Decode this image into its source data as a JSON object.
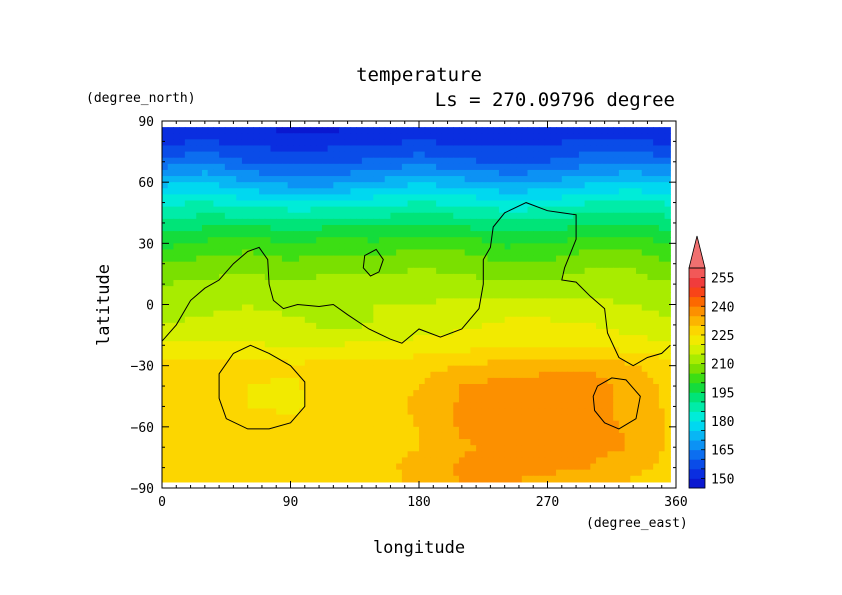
{
  "chart_data": {
    "type": "heatmap",
    "title": "temperature",
    "subtitle": "Ls = 270.09796 degree",
    "xlabel": "longitude",
    "ylabel": "latitude",
    "x_units": "(degree_east)",
    "y_units": "(degree_north)",
    "xlim": [
      0,
      360
    ],
    "ylim": [
      -90,
      90
    ],
    "x_ticks": [
      0,
      90,
      180,
      270,
      360
    ],
    "y_ticks": [
      90,
      60,
      30,
      0,
      -30,
      -60,
      -90
    ],
    "data_extent": {
      "lon": [
        0,
        356
      ],
      "lat": [
        -87,
        87
      ]
    },
    "colorbar": {
      "tick_labels": [
        255,
        240,
        225,
        210,
        195,
        180,
        165,
        150
      ],
      "levels": [
        {
          "min": 145,
          "max": 150,
          "color": "#0a18d0"
        },
        {
          "min": 150,
          "max": 155,
          "color": "#0a2ee0"
        },
        {
          "min": 155,
          "max": 160,
          "color": "#0a4ce8"
        },
        {
          "min": 160,
          "max": 165,
          "color": "#0c6ef0"
        },
        {
          "min": 165,
          "max": 170,
          "color": "#0c92f4"
        },
        {
          "min": 170,
          "max": 175,
          "color": "#08b6f4"
        },
        {
          "min": 175,
          "max": 180,
          "color": "#00d8f0"
        },
        {
          "min": 180,
          "max": 185,
          "color": "#00ecd8"
        },
        {
          "min": 185,
          "max": 190,
          "color": "#00eca8"
        },
        {
          "min": 190,
          "max": 195,
          "color": "#00e478"
        },
        {
          "min": 195,
          "max": 200,
          "color": "#14dc3c"
        },
        {
          "min": 200,
          "max": 205,
          "color": "#3cde14"
        },
        {
          "min": 205,
          "max": 210,
          "color": "#7ae000"
        },
        {
          "min": 210,
          "max": 215,
          "color": "#a8ec00"
        },
        {
          "min": 215,
          "max": 220,
          "color": "#d4f000"
        },
        {
          "min": 220,
          "max": 225,
          "color": "#f2ea00"
        },
        {
          "min": 225,
          "max": 230,
          "color": "#fcd600"
        },
        {
          "min": 230,
          "max": 235,
          "color": "#fcb400"
        },
        {
          "min": 235,
          "max": 240,
          "color": "#fc9000"
        },
        {
          "min": 240,
          "max": 245,
          "color": "#fc6800"
        },
        {
          "min": 245,
          "max": 250,
          "color": "#f84418"
        },
        {
          "min": 250,
          "max": 255,
          "color": "#f03c3c"
        },
        {
          "min": 255,
          "max": 260,
          "color": "#f25858"
        }
      ],
      "overflow_color": "#f07070"
    },
    "temperature_grid": {
      "lon": [
        0,
        30,
        60,
        90,
        120,
        150,
        180,
        210,
        240,
        270,
        300,
        330,
        360
      ],
      "lat": [
        87,
        80,
        70,
        60,
        50,
        40,
        30,
        20,
        10,
        0,
        -10,
        -20,
        -30,
        -40,
        -50,
        -60,
        -70,
        -80,
        -87
      ],
      "values": [
        [
          150,
          150,
          150,
          149,
          149,
          150,
          150,
          150,
          150,
          150,
          150,
          150,
          150
        ],
        [
          154,
          155,
          154,
          152,
          153,
          154,
          155,
          154,
          153,
          154,
          156,
          155,
          154
        ],
        [
          162,
          164,
          160,
          158,
          159,
          161,
          163,
          161,
          159,
          160,
          163,
          164,
          162
        ],
        [
          173,
          175,
          170,
          168,
          168,
          171,
          174,
          172,
          169,
          170,
          174,
          176,
          173
        ],
        [
          184,
          185,
          182,
          181,
          181,
          183,
          185,
          184,
          181,
          182,
          185,
          186,
          184
        ],
        [
          192,
          193,
          194,
          192,
          193,
          193,
          194,
          193,
          191,
          192,
          194,
          195,
          192
        ],
        [
          198,
          201,
          203,
          200,
          202,
          201,
          204,
          203,
          199,
          200,
          203,
          204,
          198
        ],
        [
          205,
          207,
          208,
          206,
          208,
          207,
          209,
          208,
          205,
          206,
          209,
          209,
          205
        ],
        [
          210,
          211,
          212,
          211,
          212,
          212,
          213,
          212,
          211,
          211,
          213,
          212,
          210
        ],
        [
          213,
          214,
          215,
          214,
          214,
          215,
          215,
          216,
          217,
          217,
          216,
          215,
          213
        ],
        [
          215,
          216,
          216,
          216,
          214,
          215,
          217,
          219,
          221,
          221,
          220,
          218,
          215
        ],
        [
          221,
          222,
          221,
          219,
          220,
          221,
          222,
          223,
          224,
          225,
          224,
          222,
          221
        ],
        [
          226,
          227,
          227,
          226,
          226,
          226,
          228,
          230,
          232,
          233,
          233,
          231,
          226
        ],
        [
          228,
          229,
          225,
          224,
          228,
          228,
          230,
          235,
          237,
          238,
          238,
          233,
          228
        ],
        [
          229,
          229,
          225,
          224,
          227,
          228,
          231,
          236,
          238,
          239,
          238,
          232,
          229
        ],
        [
          228,
          229,
          228,
          226,
          227,
          228,
          230,
          236,
          237,
          238,
          237,
          234,
          228
        ],
        [
          228,
          229,
          229,
          229,
          228,
          228,
          230,
          234,
          237,
          237,
          236,
          235,
          228
        ],
        [
          227,
          228,
          228,
          228,
          228,
          228,
          232,
          236,
          237,
          236,
          235,
          232,
          227
        ],
        [
          226,
          227,
          227,
          227,
          227,
          227,
          232,
          235,
          235,
          234,
          232,
          229,
          226
        ]
      ]
    },
    "contours": [
      {
        "lonlat": [
          [
            0,
            -18
          ],
          [
            10,
            -10
          ],
          [
            20,
            2
          ],
          [
            30,
            8
          ],
          [
            40,
            12
          ],
          [
            50,
            20
          ],
          [
            60,
            26
          ],
          [
            68,
            28
          ],
          [
            74,
            22
          ],
          [
            75,
            10
          ],
          [
            78,
            2
          ],
          [
            85,
            -2
          ],
          [
            95,
            0
          ],
          [
            110,
            -1
          ],
          [
            120,
            0
          ],
          [
            130,
            -5
          ],
          [
            145,
            -12
          ],
          [
            160,
            -17
          ],
          [
            168,
            -19
          ],
          [
            180,
            -12
          ],
          [
            195,
            -16
          ],
          [
            210,
            -12
          ],
          [
            222,
            -2
          ],
          [
            225,
            10
          ],
          [
            225,
            22
          ],
          [
            230,
            28
          ],
          [
            232,
            38
          ],
          [
            240,
            45
          ],
          [
            255,
            50
          ],
          [
            270,
            46
          ],
          [
            280,
            45
          ],
          [
            290,
            44
          ],
          [
            290,
            32
          ],
          [
            282,
            18
          ],
          [
            280,
            12
          ],
          [
            290,
            11
          ],
          [
            300,
            4
          ],
          [
            310,
            -2
          ],
          [
            312,
            -14
          ],
          [
            320,
            -26
          ],
          [
            330,
            -30
          ],
          [
            340,
            -26
          ],
          [
            350,
            -24
          ],
          [
            356,
            -20
          ]
        ],
        "closed": false
      },
      {
        "lonlat": [
          [
            40,
            -34
          ],
          [
            50,
            -24
          ],
          [
            62,
            -20
          ],
          [
            75,
            -24
          ],
          [
            90,
            -30
          ],
          [
            100,
            -38
          ],
          [
            100,
            -50
          ],
          [
            90,
            -58
          ],
          [
            75,
            -61
          ],
          [
            60,
            -61
          ],
          [
            45,
            -56
          ],
          [
            40,
            -46
          ]
        ],
        "closed": true
      },
      {
        "lonlat": [
          [
            142,
            24
          ],
          [
            150,
            27
          ],
          [
            155,
            22
          ],
          [
            152,
            16
          ],
          [
            146,
            14
          ],
          [
            141,
            18
          ]
        ],
        "closed": true
      },
      {
        "lonlat": [
          [
            305,
            -40
          ],
          [
            315,
            -36
          ],
          [
            325,
            -37
          ],
          [
            335,
            -45
          ],
          [
            332,
            -56
          ],
          [
            320,
            -61
          ],
          [
            310,
            -58
          ],
          [
            303,
            -52
          ],
          [
            302,
            -45
          ]
        ],
        "closed": true
      }
    ]
  }
}
